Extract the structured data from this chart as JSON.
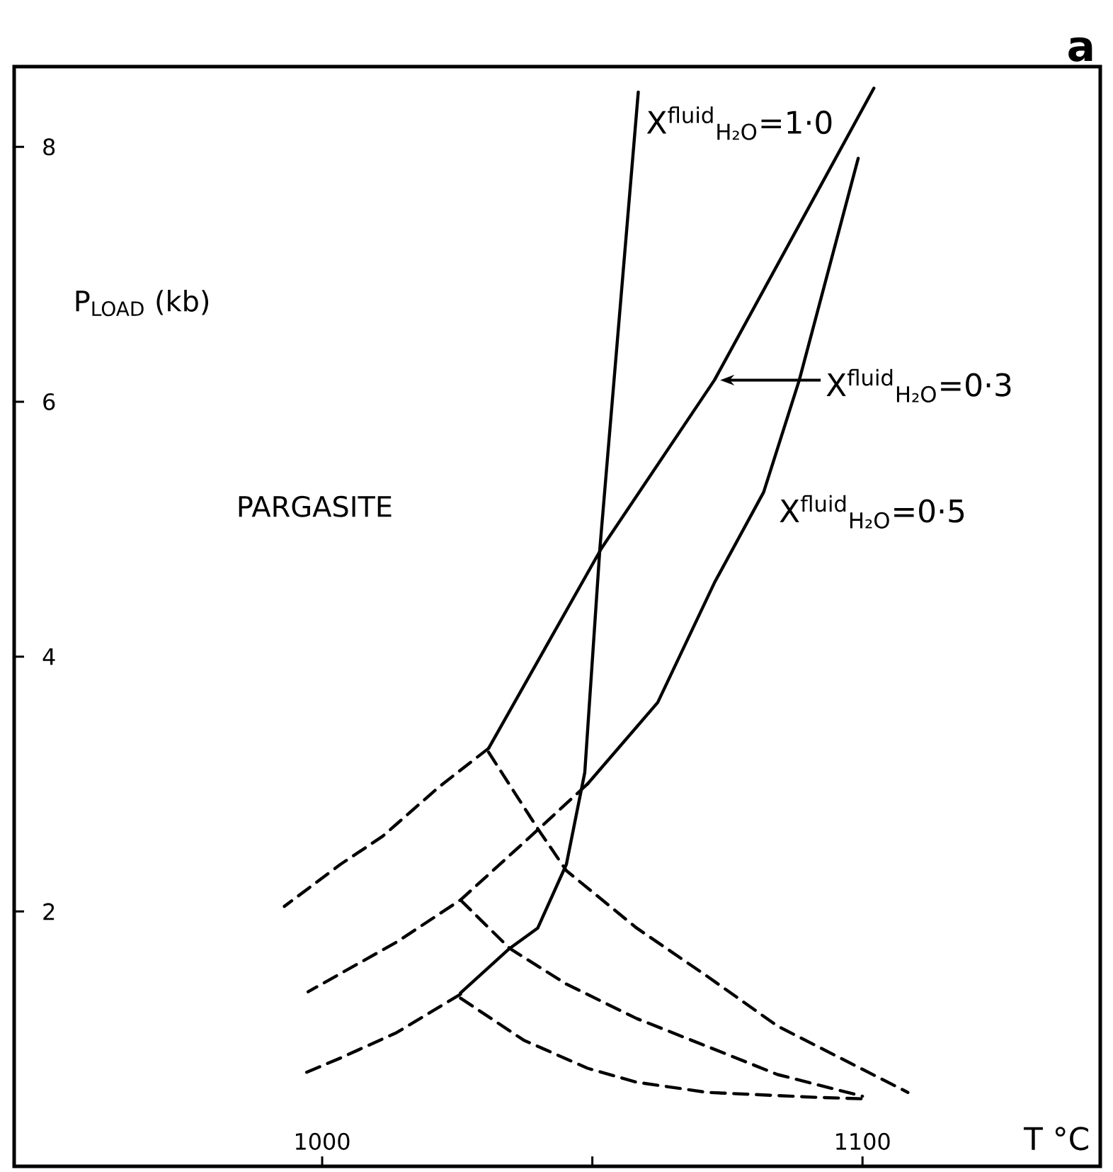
{
  "chart_data": {
    "type": "line",
    "title": "a",
    "xlabel": "T °C",
    "ylabel": "P$_{LOAD}$ (kb)",
    "xlim": [
      943,
      1144
    ],
    "ylim": [
      0,
      8.63
    ],
    "xticks": [
      1000,
      {
        "value": 1050,
        "label": null
      },
      1100
    ],
    "yticks": [
      2,
      4,
      6,
      8
    ],
    "marker": "none",
    "annotations": [
      "PARGASITE"
    ],
    "series": [
      {
        "name": "X$^{fluid}$$_{H₂O}$=1·0",
        "color": "#000000",
        "line_style": "solid",
        "x": [
          1025.6,
          1034.7,
          1039.9,
          1045.2,
          1048.6,
          1051.4,
          1058.5
        ],
        "values": [
          1.36,
          1.71,
          1.87,
          2.37,
          3.09,
          4.85,
          8.43
        ]
      },
      {
        "color": "#000000",
        "line_style": "dashed",
        "x": [
          1025.6,
          1013.8,
          1003.4,
          996.1
        ],
        "values": [
          1.35,
          1.05,
          0.85,
          0.72
        ]
      },
      {
        "name": "X$^{fluid}$$_{H₂O}$=0·3",
        "color": "#000000",
        "line_style": "solid",
        "x": [
          1030.8,
          1051.7,
          1072.6,
          1102.1
        ],
        "values": [
          3.28,
          4.85,
          6.17,
          8.46
        ]
      },
      {
        "color": "#000000",
        "line_style": "dashed",
        "x": [
          1030.8,
          1021.7,
          1011.2,
          1003.4,
          993.0
        ],
        "values": [
          3.28,
          2.98,
          2.59,
          2.37,
          2.04
        ]
      },
      {
        "name": "X$^{fluid}$$_{H₂O}$=0·5",
        "color": "#000000",
        "line_style": "solid",
        "x": [
          1049.1,
          1062.1,
          1072.6,
          1081.7,
          1088.3,
          1099.2
        ],
        "values": [
          3.0,
          3.64,
          4.58,
          5.29,
          6.17,
          7.91
        ]
      },
      {
        "color": "#000000",
        "line_style": "dashed",
        "x": [
          1049.1,
          1038.6,
          1025.6,
          1013.8,
          997.4
        ],
        "values": [
          3.0,
          2.59,
          2.09,
          1.76,
          1.37
        ]
      },
      {
        "color": "#000000",
        "line_style": "dashed",
        "x": [
          1030.8,
          1039.9,
          1045.2,
          1058.2,
          1071.3,
          1084.3,
          1108.4
        ],
        "values": [
          3.25,
          2.65,
          2.32,
          1.87,
          1.49,
          1.1,
          0.58
        ]
      },
      {
        "color": "#000000",
        "line_style": "dashed",
        "x": [
          1025.6,
          1034.7,
          1045.2,
          1058.2,
          1071.3,
          1084.3,
          1100
        ],
        "values": [
          2.09,
          1.71,
          1.43,
          1.16,
          0.94,
          0.72,
          0.55
        ]
      },
      {
        "color": "#000000",
        "line_style": "dashed",
        "x": [
          1025.6,
          1037.3,
          1049.1,
          1058.2,
          1071.3,
          1092.2,
          1100
        ],
        "values": [
          1.32,
          0.99,
          0.77,
          0.66,
          0.58,
          0.54,
          0.53
        ]
      }
    ]
  }
}
